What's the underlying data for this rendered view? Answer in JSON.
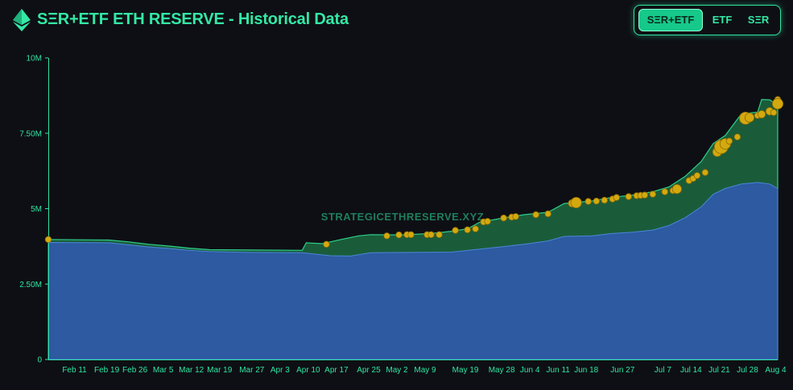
{
  "header": {
    "title": "SΞR+ETF ETH RESERVE - Historical Data",
    "logo_icon": "ethereum-diamond-icon",
    "toggle": [
      {
        "label": "SΞR+ETF",
        "active": true
      },
      {
        "label": "ETF",
        "active": false
      },
      {
        "label": "SΞR",
        "active": false
      }
    ]
  },
  "watermark": "STRATEGICETHRESERVE.XYZ",
  "colors": {
    "accent": "#33e8a5",
    "etf_area": "#2d5aa0",
    "ser_area": "#1a5c3a",
    "point": "#d4a90f"
  },
  "chart_data": {
    "type": "area",
    "y_ticks": [
      {
        "value": 0,
        "label": "0"
      },
      {
        "value": 2500000,
        "label": "2.50M"
      },
      {
        "value": 5000000,
        "label": "5M"
      },
      {
        "value": 7500000,
        "label": "7.50M"
      },
      {
        "value": 10000000,
        "label": "10M"
      }
    ],
    "ylim": [
      0,
      10000000
    ],
    "x_ticks": [
      {
        "t": 6.5,
        "label": "Feb 11"
      },
      {
        "t": 14.5,
        "label": "Feb 19"
      },
      {
        "t": 21.5,
        "label": "Feb 26"
      },
      {
        "t": 28.5,
        "label": "Mar 5"
      },
      {
        "t": 35.5,
        "label": "Mar 12"
      },
      {
        "t": 42.5,
        "label": "Mar 19"
      },
      {
        "t": 50.5,
        "label": "Mar 27"
      },
      {
        "t": 57.5,
        "label": "Apr 3"
      },
      {
        "t": 64.5,
        "label": "Apr 10"
      },
      {
        "t": 71.5,
        "label": "Apr 17"
      },
      {
        "t": 79.5,
        "label": "Apr 25"
      },
      {
        "t": 86.5,
        "label": "May 2"
      },
      {
        "t": 93.5,
        "label": "May 9"
      },
      {
        "t": 103.5,
        "label": "May 19"
      },
      {
        "t": 112.5,
        "label": "May 28"
      },
      {
        "t": 119.5,
        "label": "Jun 4"
      },
      {
        "t": 126.5,
        "label": "Jun 11"
      },
      {
        "t": 133.5,
        "label": "Jun 18"
      },
      {
        "t": 142.5,
        "label": "Jun 27"
      },
      {
        "t": 152.5,
        "label": "Jul 7"
      },
      {
        "t": 159.5,
        "label": "Jul 14"
      },
      {
        "t": 166.5,
        "label": "Jul 21"
      },
      {
        "t": 173.5,
        "label": "Jul 28"
      },
      {
        "t": 180.5,
        "label": "Aug 4"
      }
    ],
    "xlim": [
      0,
      181
    ],
    "series": [
      {
        "key": "etf",
        "points": [
          [
            0,
            3880000
          ],
          [
            15,
            3870000
          ],
          [
            20,
            3800000
          ],
          [
            25,
            3730000
          ],
          [
            30,
            3680000
          ],
          [
            35,
            3620000
          ],
          [
            40,
            3580000
          ],
          [
            50,
            3550000
          ],
          [
            63,
            3540000
          ],
          [
            70,
            3440000
          ],
          [
            75,
            3430000
          ],
          [
            80,
            3540000
          ],
          [
            100,
            3560000
          ],
          [
            110,
            3700000
          ],
          [
            118,
            3820000
          ],
          [
            124,
            3930000
          ],
          [
            128,
            4080000
          ],
          [
            135,
            4100000
          ],
          [
            140,
            4180000
          ],
          [
            145,
            4220000
          ],
          [
            150,
            4290000
          ],
          [
            154,
            4440000
          ],
          [
            158,
            4700000
          ],
          [
            162,
            5060000
          ],
          [
            165,
            5480000
          ],
          [
            168,
            5670000
          ],
          [
            172,
            5820000
          ],
          [
            176,
            5870000
          ],
          [
            179,
            5820000
          ],
          [
            181,
            5670000
          ]
        ]
      },
      {
        "key": "total",
        "points": [
          [
            0,
            3980000
          ],
          [
            15,
            3960000
          ],
          [
            20,
            3900000
          ],
          [
            25,
            3820000
          ],
          [
            30,
            3760000
          ],
          [
            35,
            3690000
          ],
          [
            40,
            3640000
          ],
          [
            50,
            3630000
          ],
          [
            63,
            3620000
          ],
          [
            64,
            3870000
          ],
          [
            68,
            3840000
          ],
          [
            73,
            3990000
          ],
          [
            77,
            4100000
          ],
          [
            80,
            4140000
          ],
          [
            88,
            4130000
          ],
          [
            95,
            4180000
          ],
          [
            100,
            4250000
          ],
          [
            104,
            4330000
          ],
          [
            107,
            4550000
          ],
          [
            112,
            4670000
          ],
          [
            118,
            4800000
          ],
          [
            124,
            4880000
          ],
          [
            128,
            5170000
          ],
          [
            135,
            5260000
          ],
          [
            140,
            5380000
          ],
          [
            145,
            5450000
          ],
          [
            150,
            5560000
          ],
          [
            154,
            5720000
          ],
          [
            158,
            6070000
          ],
          [
            162,
            6560000
          ],
          [
            165,
            7160000
          ],
          [
            168,
            7430000
          ],
          [
            172,
            8150000
          ],
          [
            176,
            8200000
          ],
          [
            177,
            8620000
          ],
          [
            179,
            8610000
          ],
          [
            181,
            8440000
          ]
        ]
      }
    ],
    "points": [
      [
        0,
        3980000,
        4
      ],
      [
        69,
        3820000,
        4
      ],
      [
        84,
        4100000,
        4
      ],
      [
        87,
        4130000,
        4
      ],
      [
        89,
        4140000,
        4
      ],
      [
        90,
        4140000,
        4
      ],
      [
        94,
        4140000,
        4
      ],
      [
        95,
        4140000,
        4
      ],
      [
        97,
        4140000,
        4
      ],
      [
        101,
        4280000,
        4
      ],
      [
        104,
        4300000,
        4
      ],
      [
        106,
        4330000,
        4
      ],
      [
        108,
        4560000,
        4
      ],
      [
        109,
        4580000,
        4
      ],
      [
        113,
        4690000,
        4
      ],
      [
        115,
        4720000,
        4
      ],
      [
        116,
        4740000,
        4
      ],
      [
        121,
        4800000,
        4
      ],
      [
        124,
        4830000,
        4
      ],
      [
        130,
        5180000,
        5
      ],
      [
        131,
        5200000,
        7
      ],
      [
        134,
        5240000,
        4
      ],
      [
        136,
        5250000,
        4
      ],
      [
        138,
        5280000,
        4
      ],
      [
        140,
        5320000,
        4
      ],
      [
        141,
        5370000,
        4
      ],
      [
        144,
        5400000,
        4
      ],
      [
        146,
        5430000,
        4
      ],
      [
        147,
        5440000,
        4
      ],
      [
        148,
        5450000,
        4
      ],
      [
        150,
        5480000,
        4
      ],
      [
        153,
        5560000,
        4
      ],
      [
        155,
        5600000,
        4
      ],
      [
        156,
        5650000,
        6
      ],
      [
        159,
        5930000,
        4
      ],
      [
        160,
        6000000,
        4
      ],
      [
        161,
        6100000,
        4
      ],
      [
        163,
        6200000,
        4
      ],
      [
        166,
        6880000,
        6
      ],
      [
        167,
        7050000,
        9
      ],
      [
        168,
        7150000,
        7
      ],
      [
        169,
        7240000,
        4
      ],
      [
        171,
        7380000,
        4
      ],
      [
        173,
        8000000,
        8
      ],
      [
        174,
        8020000,
        6
      ],
      [
        176,
        8090000,
        4
      ],
      [
        177,
        8130000,
        5
      ],
      [
        179,
        8230000,
        5
      ],
      [
        180,
        8190000,
        4
      ],
      [
        181,
        8620000,
        4
      ],
      [
        183,
        8480000,
        7
      ]
    ]
  }
}
